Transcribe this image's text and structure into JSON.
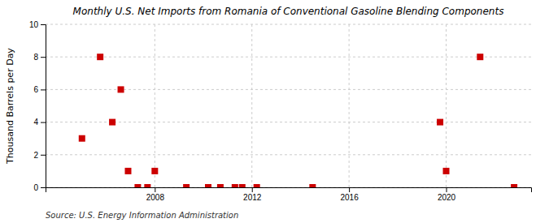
{
  "chart_data": {
    "type": "scatter",
    "title": "Monthly U.S. Net Imports from Romania of Conventional Gasoline Blending Components",
    "ylabel": "Thousand Barrels per Day",
    "source": "Source: U.S. Energy Information Administration",
    "color": "#cc0000",
    "marker": "square",
    "x": [
      2005.0,
      2005.75,
      2006.25,
      2006.6,
      2006.9,
      2007.3,
      2007.7,
      2008.0,
      2009.3,
      2010.2,
      2010.7,
      2011.3,
      2011.6,
      2012.2,
      2014.5,
      2019.75,
      2020.0,
      2021.4,
      2022.8
    ],
    "values": [
      3,
      8,
      4,
      6,
      1,
      0,
      0,
      1,
      0,
      0,
      0,
      0,
      0,
      0,
      0,
      4,
      1,
      8,
      0
    ],
    "xlim": [
      2003.5,
      2023.5
    ],
    "ylim": [
      0,
      10
    ],
    "xticks": [
      2008,
      2012,
      2016,
      2020
    ],
    "yticks": [
      0,
      2,
      4,
      6,
      8,
      10
    ],
    "grid": true
  }
}
